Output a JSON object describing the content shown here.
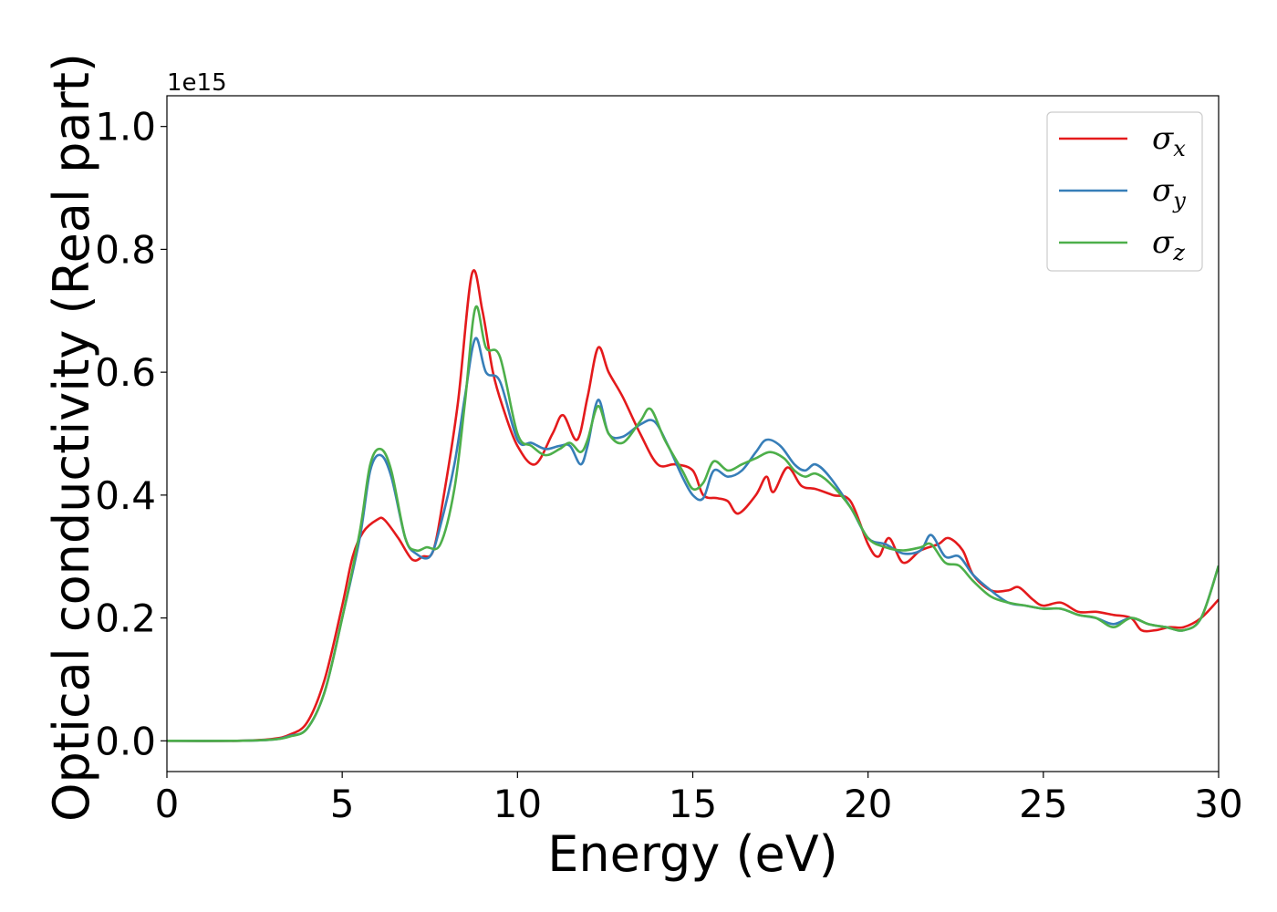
{
  "chart_data": {
    "type": "line",
    "xlabel": "Energy (eV)",
    "ylabel": "Optical conductivity (Real part)",
    "y_offset_label": "1e15",
    "xlim": [
      0,
      30
    ],
    "ylim": [
      -0.05,
      1.05
    ],
    "xticks": [
      0,
      5,
      10,
      15,
      20,
      25,
      30
    ],
    "yticks": [
      0.0,
      0.2,
      0.4,
      0.6,
      0.8,
      1.0
    ],
    "xtick_labels": [
      "0",
      "5",
      "10",
      "15",
      "20",
      "25",
      "30"
    ],
    "ytick_labels": [
      "0.0",
      "0.2",
      "0.4",
      "0.6",
      "0.8",
      "1.0"
    ],
    "grid": false,
    "legend_position": "top-right",
    "series": [
      {
        "name": "σx",
        "legend_symbol": "σ",
        "legend_subscript": "x",
        "color": "#e41a1c",
        "points": [
          [
            0,
            0.0
          ],
          [
            2,
            0.0
          ],
          [
            3,
            0.003
          ],
          [
            3.5,
            0.01
          ],
          [
            4,
            0.03
          ],
          [
            4.5,
            0.1
          ],
          [
            5,
            0.22
          ],
          [
            5.3,
            0.3
          ],
          [
            5.6,
            0.34
          ],
          [
            6.0,
            0.36
          ],
          [
            6.2,
            0.36
          ],
          [
            6.6,
            0.33
          ],
          [
            7.0,
            0.295
          ],
          [
            7.3,
            0.3
          ],
          [
            7.6,
            0.31
          ],
          [
            7.9,
            0.4
          ],
          [
            8.3,
            0.55
          ],
          [
            8.7,
            0.76
          ],
          [
            9.0,
            0.7
          ],
          [
            9.3,
            0.6
          ],
          [
            9.6,
            0.54
          ],
          [
            10.0,
            0.48
          ],
          [
            10.5,
            0.45
          ],
          [
            11.0,
            0.5
          ],
          [
            11.3,
            0.53
          ],
          [
            11.7,
            0.49
          ],
          [
            12.0,
            0.56
          ],
          [
            12.3,
            0.64
          ],
          [
            12.6,
            0.6
          ],
          [
            13.0,
            0.56
          ],
          [
            13.5,
            0.5
          ],
          [
            14.0,
            0.45
          ],
          [
            14.5,
            0.45
          ],
          [
            15.0,
            0.44
          ],
          [
            15.3,
            0.4
          ],
          [
            15.7,
            0.395
          ],
          [
            16.0,
            0.39
          ],
          [
            16.3,
            0.37
          ],
          [
            16.8,
            0.4
          ],
          [
            17.1,
            0.43
          ],
          [
            17.3,
            0.405
          ],
          [
            17.7,
            0.445
          ],
          [
            18.1,
            0.415
          ],
          [
            18.5,
            0.41
          ],
          [
            19.0,
            0.4
          ],
          [
            19.5,
            0.39
          ],
          [
            20.0,
            0.32
          ],
          [
            20.3,
            0.3
          ],
          [
            20.6,
            0.33
          ],
          [
            21.0,
            0.29
          ],
          [
            21.5,
            0.31
          ],
          [
            22.0,
            0.32
          ],
          [
            22.3,
            0.33
          ],
          [
            22.7,
            0.31
          ],
          [
            23.0,
            0.27
          ],
          [
            23.5,
            0.245
          ],
          [
            24.0,
            0.245
          ],
          [
            24.3,
            0.25
          ],
          [
            24.7,
            0.23
          ],
          [
            25.0,
            0.22
          ],
          [
            25.5,
            0.225
          ],
          [
            26.0,
            0.21
          ],
          [
            26.5,
            0.21
          ],
          [
            27.0,
            0.205
          ],
          [
            27.5,
            0.2
          ],
          [
            27.8,
            0.18
          ],
          [
            28.2,
            0.18
          ],
          [
            28.6,
            0.185
          ],
          [
            29.0,
            0.185
          ],
          [
            29.5,
            0.2
          ],
          [
            30.0,
            0.23
          ]
        ]
      },
      {
        "name": "σy",
        "legend_symbol": "σ",
        "legend_subscript": "y",
        "color": "#377eb8",
        "points": [
          [
            0,
            0.0
          ],
          [
            2,
            0.0
          ],
          [
            3,
            0.002
          ],
          [
            3.5,
            0.008
          ],
          [
            4,
            0.02
          ],
          [
            4.5,
            0.08
          ],
          [
            5,
            0.2
          ],
          [
            5.5,
            0.33
          ],
          [
            5.8,
            0.44
          ],
          [
            6.1,
            0.465
          ],
          [
            6.4,
            0.43
          ],
          [
            6.8,
            0.33
          ],
          [
            7.1,
            0.305
          ],
          [
            7.5,
            0.3
          ],
          [
            7.8,
            0.35
          ],
          [
            8.2,
            0.45
          ],
          [
            8.5,
            0.56
          ],
          [
            8.8,
            0.655
          ],
          [
            9.1,
            0.6
          ],
          [
            9.5,
            0.585
          ],
          [
            10.0,
            0.49
          ],
          [
            10.4,
            0.485
          ],
          [
            10.8,
            0.475
          ],
          [
            11.2,
            0.48
          ],
          [
            11.5,
            0.48
          ],
          [
            11.8,
            0.45
          ],
          [
            12.0,
            0.48
          ],
          [
            12.3,
            0.555
          ],
          [
            12.6,
            0.5
          ],
          [
            13.0,
            0.495
          ],
          [
            13.5,
            0.515
          ],
          [
            13.9,
            0.52
          ],
          [
            14.3,
            0.48
          ],
          [
            14.7,
            0.43
          ],
          [
            15.0,
            0.4
          ],
          [
            15.3,
            0.395
          ],
          [
            15.6,
            0.44
          ],
          [
            16.0,
            0.43
          ],
          [
            16.4,
            0.44
          ],
          [
            16.8,
            0.47
          ],
          [
            17.1,
            0.49
          ],
          [
            17.5,
            0.48
          ],
          [
            17.9,
            0.45
          ],
          [
            18.2,
            0.44
          ],
          [
            18.5,
            0.45
          ],
          [
            18.9,
            0.43
          ],
          [
            19.5,
            0.38
          ],
          [
            20.0,
            0.33
          ],
          [
            20.5,
            0.32
          ],
          [
            21.0,
            0.305
          ],
          [
            21.5,
            0.31
          ],
          [
            21.8,
            0.335
          ],
          [
            22.2,
            0.3
          ],
          [
            22.6,
            0.3
          ],
          [
            23.0,
            0.27
          ],
          [
            23.5,
            0.245
          ],
          [
            24.0,
            0.225
          ],
          [
            24.5,
            0.22
          ],
          [
            25.0,
            0.215
          ],
          [
            25.5,
            0.215
          ],
          [
            26.0,
            0.205
          ],
          [
            26.5,
            0.2
          ],
          [
            27.0,
            0.19
          ],
          [
            27.5,
            0.2
          ],
          [
            28.0,
            0.19
          ],
          [
            28.5,
            0.185
          ],
          [
            29.0,
            0.18
          ],
          [
            29.5,
            0.2
          ],
          [
            30.0,
            0.285
          ]
        ]
      },
      {
        "name": "σz",
        "legend_symbol": "σ",
        "legend_subscript": "z",
        "color": "#4daf4a",
        "points": [
          [
            0,
            0.0
          ],
          [
            2,
            0.0
          ],
          [
            3,
            0.002
          ],
          [
            3.5,
            0.007
          ],
          [
            4,
            0.02
          ],
          [
            4.5,
            0.08
          ],
          [
            5,
            0.2
          ],
          [
            5.5,
            0.34
          ],
          [
            5.8,
            0.45
          ],
          [
            6.1,
            0.475
          ],
          [
            6.4,
            0.44
          ],
          [
            6.8,
            0.33
          ],
          [
            7.1,
            0.31
          ],
          [
            7.4,
            0.315
          ],
          [
            7.8,
            0.32
          ],
          [
            8.2,
            0.41
          ],
          [
            8.5,
            0.55
          ],
          [
            8.8,
            0.705
          ],
          [
            9.1,
            0.64
          ],
          [
            9.5,
            0.625
          ],
          [
            10.0,
            0.5
          ],
          [
            10.4,
            0.48
          ],
          [
            10.8,
            0.465
          ],
          [
            11.2,
            0.475
          ],
          [
            11.5,
            0.485
          ],
          [
            11.8,
            0.47
          ],
          [
            12.0,
            0.49
          ],
          [
            12.3,
            0.545
          ],
          [
            12.6,
            0.5
          ],
          [
            13.0,
            0.485
          ],
          [
            13.5,
            0.52
          ],
          [
            13.8,
            0.54
          ],
          [
            14.2,
            0.49
          ],
          [
            14.7,
            0.44
          ],
          [
            15.0,
            0.41
          ],
          [
            15.3,
            0.42
          ],
          [
            15.6,
            0.455
          ],
          [
            16.0,
            0.44
          ],
          [
            16.4,
            0.45
          ],
          [
            16.8,
            0.46
          ],
          [
            17.2,
            0.47
          ],
          [
            17.6,
            0.46
          ],
          [
            17.9,
            0.44
          ],
          [
            18.2,
            0.43
          ],
          [
            18.5,
            0.435
          ],
          [
            18.9,
            0.42
          ],
          [
            19.5,
            0.38
          ],
          [
            20.0,
            0.33
          ],
          [
            20.5,
            0.315
          ],
          [
            21.0,
            0.31
          ],
          [
            21.5,
            0.315
          ],
          [
            21.8,
            0.32
          ],
          [
            22.2,
            0.29
          ],
          [
            22.6,
            0.285
          ],
          [
            23.0,
            0.26
          ],
          [
            23.5,
            0.235
          ],
          [
            24.0,
            0.225
          ],
          [
            24.5,
            0.22
          ],
          [
            25.0,
            0.215
          ],
          [
            25.5,
            0.215
          ],
          [
            26.0,
            0.205
          ],
          [
            26.5,
            0.2
          ],
          [
            27.0,
            0.185
          ],
          [
            27.5,
            0.2
          ],
          [
            28.0,
            0.19
          ],
          [
            28.5,
            0.185
          ],
          [
            29.0,
            0.18
          ],
          [
            29.5,
            0.2
          ],
          [
            30.0,
            0.285
          ]
        ]
      }
    ]
  }
}
